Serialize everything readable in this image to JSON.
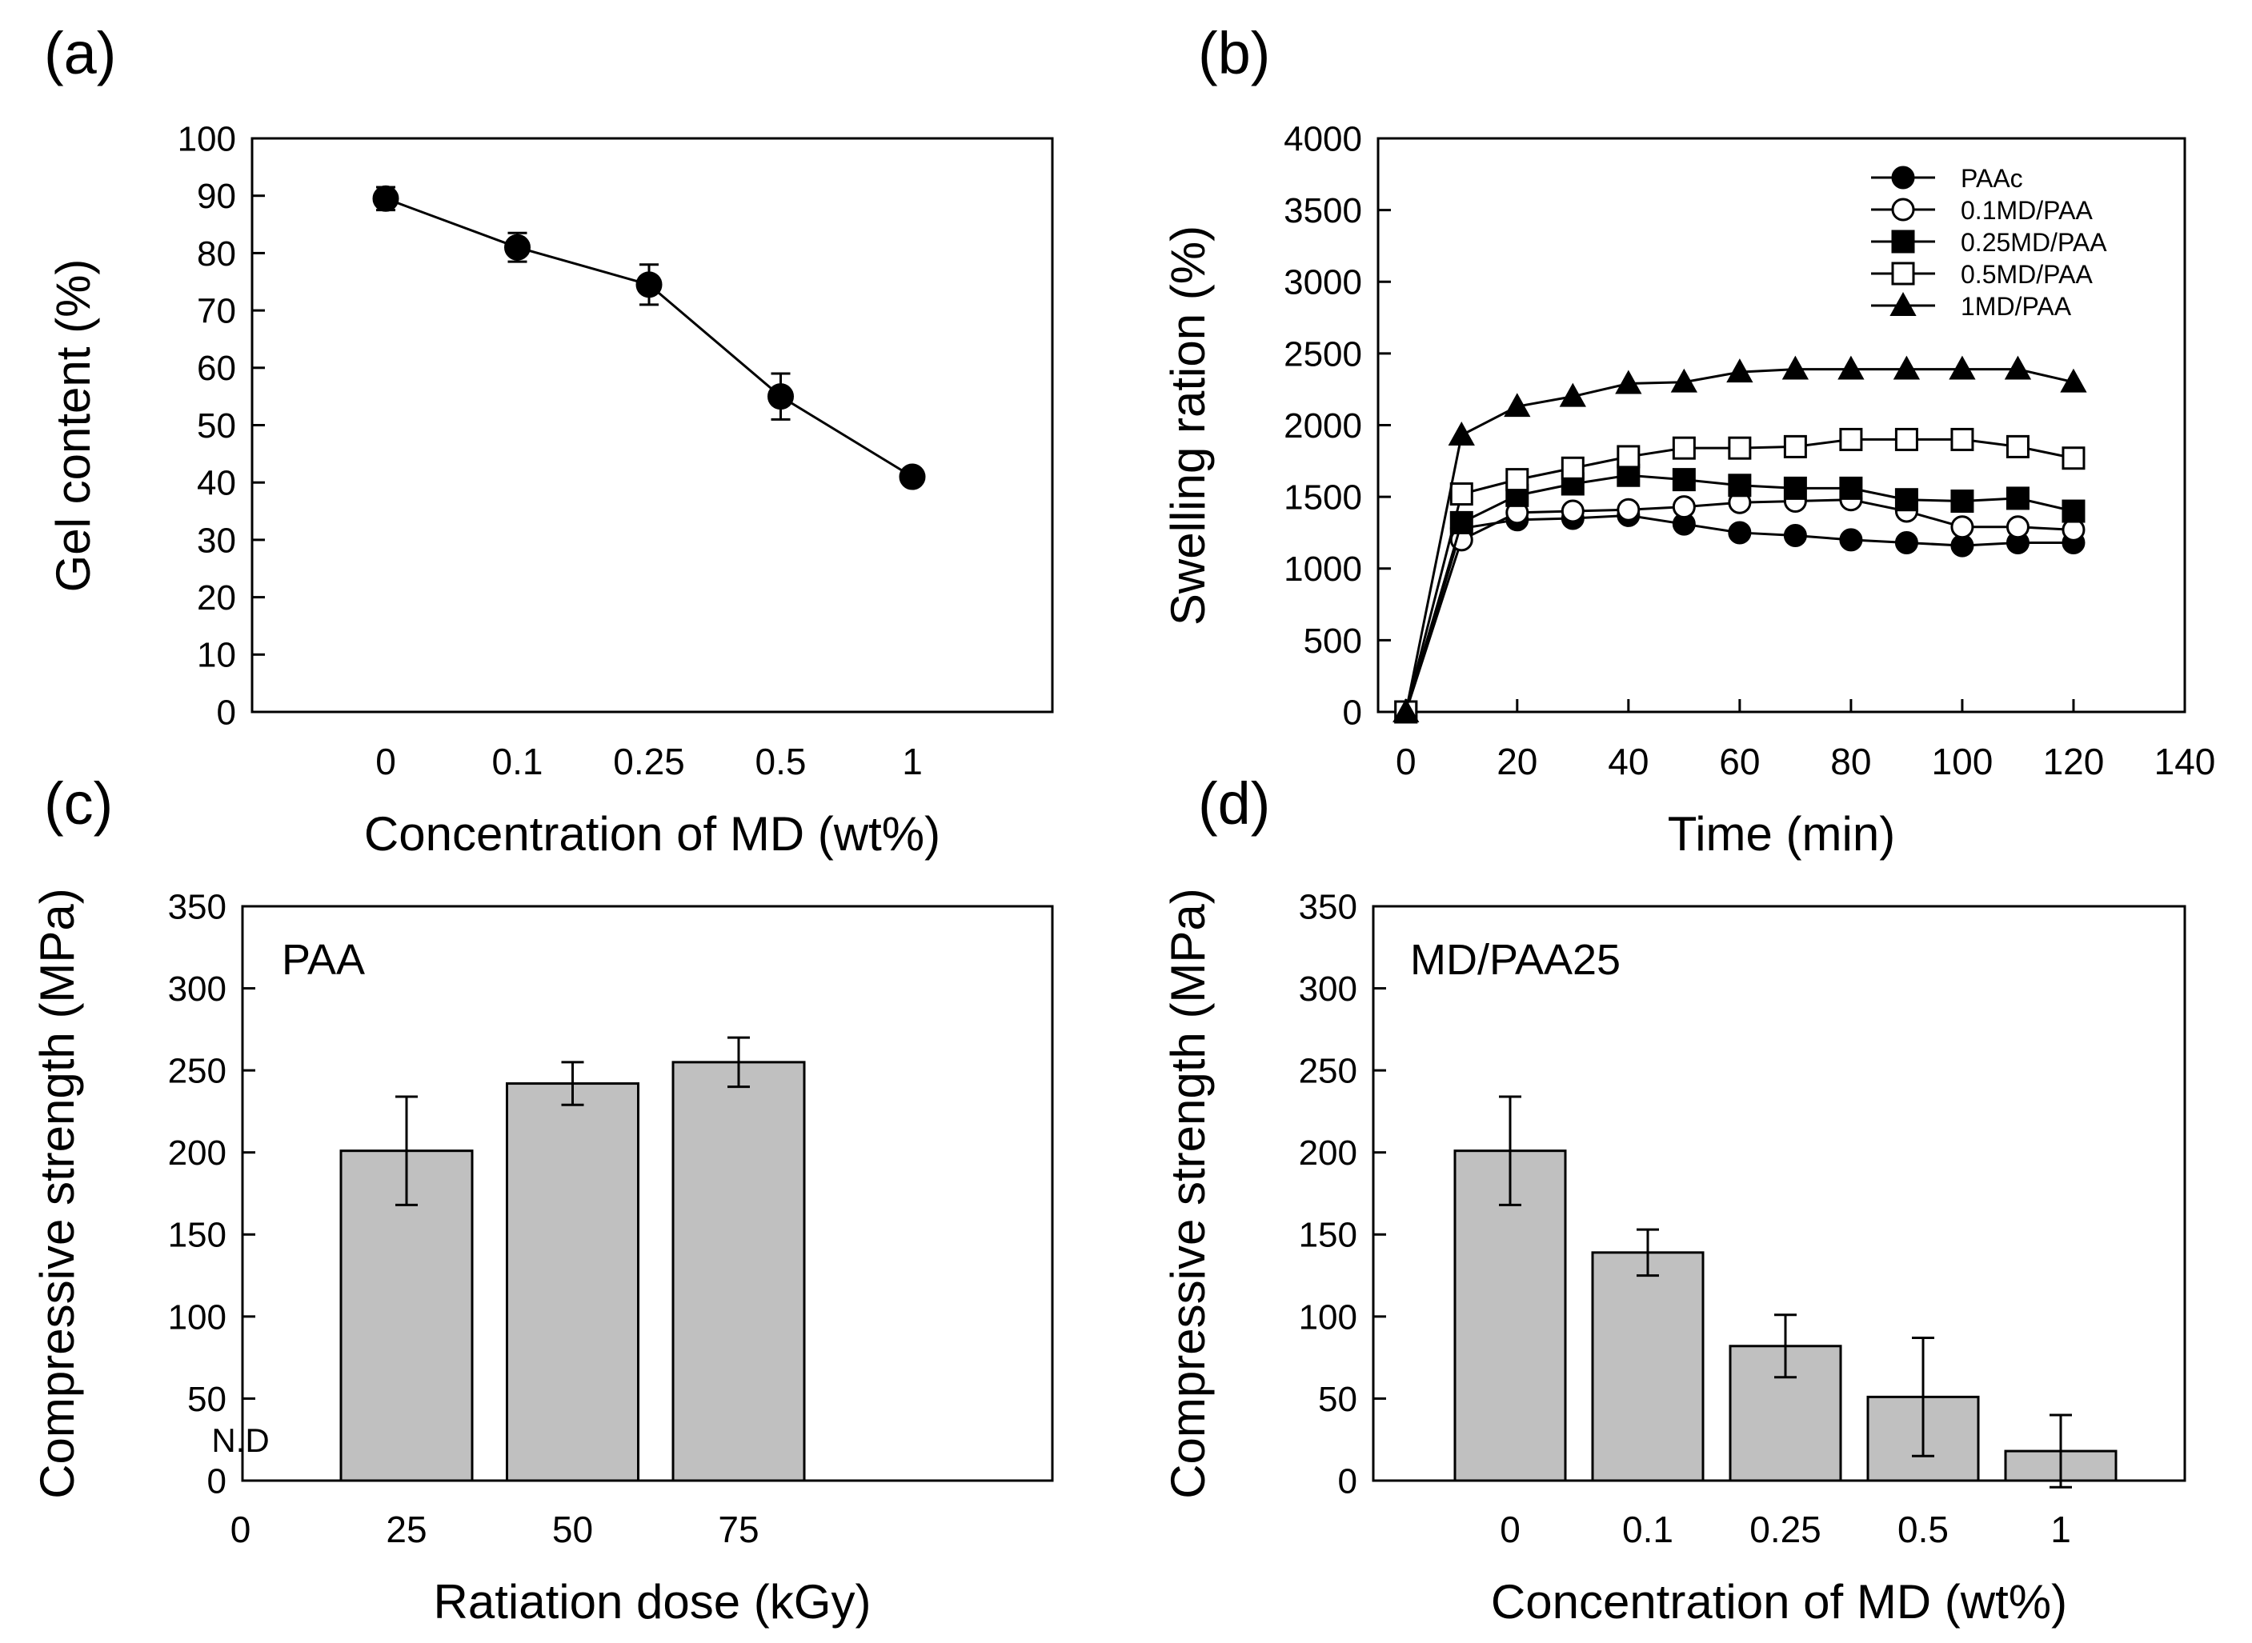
{
  "chart_data": [
    {
      "id": "a",
      "type": "line",
      "panel_label": "(a)",
      "title": "",
      "xlabel": "Concentration of MD (wt%)",
      "ylabel": "Gel content (%)",
      "categories": [
        "0",
        "0.1",
        "0.25",
        "0.5",
        "1"
      ],
      "yticks": [
        0,
        10,
        20,
        30,
        40,
        50,
        60,
        70,
        80,
        90,
        100
      ],
      "ylim": [
        0,
        100
      ],
      "grid": false,
      "series": [
        {
          "name": "Gel content",
          "marker": "filled-circle",
          "values": [
            89.5,
            81,
            74.5,
            55,
            41
          ],
          "errors": [
            2,
            2.5,
            3.5,
            4,
            1
          ]
        }
      ]
    },
    {
      "id": "b",
      "type": "line",
      "panel_label": "(b)",
      "title": "",
      "xlabel": "Time (min)",
      "ylabel": "Swelling ration (%)",
      "xticks": [
        0,
        20,
        40,
        60,
        80,
        100,
        120,
        140
      ],
      "yticks": [
        0,
        500,
        1000,
        1500,
        2000,
        2500,
        3000,
        3500,
        4000
      ],
      "xlim": [
        -5,
        140
      ],
      "ylim": [
        0,
        4000
      ],
      "grid": false,
      "legend": "top-right",
      "x": [
        0,
        10,
        20,
        30,
        40,
        50,
        60,
        70,
        80,
        90,
        100,
        110,
        120
      ],
      "series": [
        {
          "name": "PAAc",
          "marker": "filled-circle",
          "values": [
            0,
            1280,
            1340,
            1350,
            1370,
            1310,
            1250,
            1230,
            1200,
            1180,
            1160,
            1180,
            1180
          ]
        },
        {
          "name": "0.1MD/PAA",
          "marker": "open-circle",
          "values": [
            0,
            1200,
            1390,
            1400,
            1410,
            1430,
            1460,
            1470,
            1480,
            1400,
            1290,
            1290,
            1270
          ]
        },
        {
          "name": "0.25MD/PAA",
          "marker": "filled-square",
          "values": [
            0,
            1320,
            1510,
            1590,
            1650,
            1620,
            1580,
            1560,
            1560,
            1480,
            1470,
            1490,
            1400
          ]
        },
        {
          "name": "0.5MD/PAA",
          "marker": "open-square",
          "values": [
            0,
            1520,
            1620,
            1700,
            1780,
            1840,
            1840,
            1850,
            1900,
            1900,
            1900,
            1850,
            1770
          ]
        },
        {
          "name": "1MD/PAA",
          "marker": "filled-triangle",
          "values": [
            0,
            1930,
            2130,
            2200,
            2290,
            2300,
            2370,
            2390,
            2390,
            2390,
            2390,
            2390,
            2300
          ]
        }
      ]
    },
    {
      "id": "c",
      "type": "bar",
      "panel_label": "(c)",
      "title": "",
      "inner_label": "PAA",
      "xlabel": "Ratiation dose (kGy)",
      "ylabel": "Compressive strength (MPa)",
      "categories": [
        "0",
        "25",
        "50",
        "75"
      ],
      "values": [
        null,
        201,
        242,
        255
      ],
      "errors": [
        null,
        33,
        13,
        15
      ],
      "na_label": "N.D",
      "yticks": [
        0,
        50,
        100,
        150,
        200,
        250,
        300,
        350
      ],
      "ylim": [
        0,
        350
      ],
      "bar_color": "#c0c0c0",
      "grid": false
    },
    {
      "id": "d",
      "type": "bar",
      "panel_label": "(d)",
      "title": "",
      "inner_label": "MD/PAA25",
      "xlabel": "Concentration of MD (wt%)",
      "ylabel": "Compressive strength (MPa)",
      "categories": [
        "0",
        "0.1",
        "0.25",
        "0.5",
        "1"
      ],
      "values": [
        201,
        139,
        82,
        51,
        18
      ],
      "errors": [
        33,
        14,
        19,
        36,
        22
      ],
      "yticks": [
        0,
        50,
        100,
        150,
        200,
        250,
        300,
        350
      ],
      "ylim": [
        0,
        350
      ],
      "bar_color": "#c0c0c0",
      "grid": false
    }
  ]
}
